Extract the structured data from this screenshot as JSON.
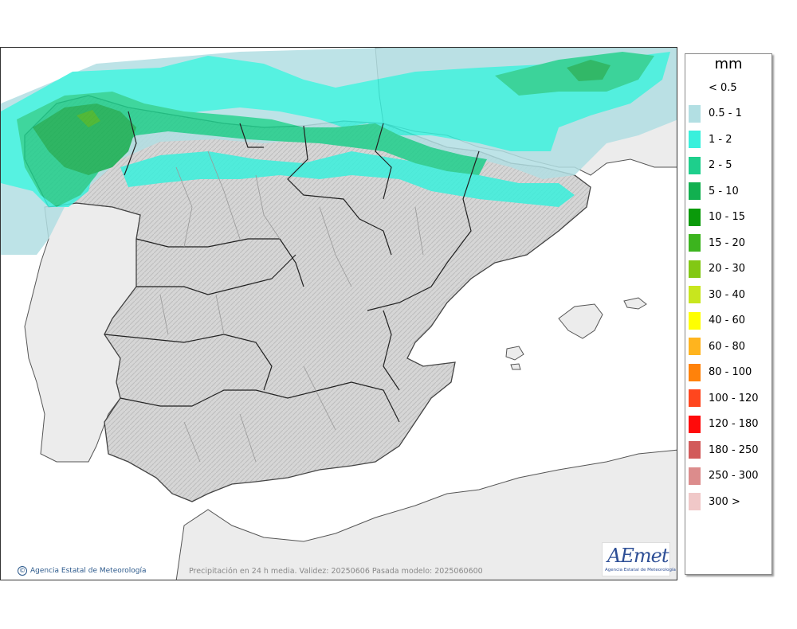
{
  "legend": {
    "unit": "mm",
    "items": [
      {
        "label": "< 0.5",
        "color": ""
      },
      {
        "label": "0.5 - 1",
        "color": "#b2dfe3"
      },
      {
        "label": "1 - 2",
        "color": "#39f0dc"
      },
      {
        "label": "2 - 5",
        "color": "#1ecf8c"
      },
      {
        "label": "5 - 10",
        "color": "#12b050"
      },
      {
        "label": "10 - 15",
        "color": "#0a9a0a"
      },
      {
        "label": "15 - 20",
        "color": "#3cb41e"
      },
      {
        "label": "20 - 30",
        "color": "#82c814"
      },
      {
        "label": "30 - 40",
        "color": "#c8e61e"
      },
      {
        "label": "40 - 60",
        "color": "#ffff00"
      },
      {
        "label": "60 - 80",
        "color": "#ffb41e"
      },
      {
        "label": "80 - 100",
        "color": "#ff820a"
      },
      {
        "label": "100 - 120",
        "color": "#ff461e"
      },
      {
        "label": "120 - 180",
        "color": "#ff0a0a"
      },
      {
        "label": "180 - 250",
        "color": "#d25a5a"
      },
      {
        "label": "250 - 300",
        "color": "#dc8c8c"
      },
      {
        "label": "300 >",
        "color": "#f0c8c8"
      }
    ]
  },
  "footer": {
    "credit": "Agencia Estatal de Meteorología",
    "credit_icon": "copyright-icon",
    "caption": "Precipitación en 24 h media. Validez: 20250606 Pasada modelo: 2025060600"
  },
  "logo": {
    "text": "AEmet",
    "subtitle": "Agencia Estatal de Meteorología"
  }
}
